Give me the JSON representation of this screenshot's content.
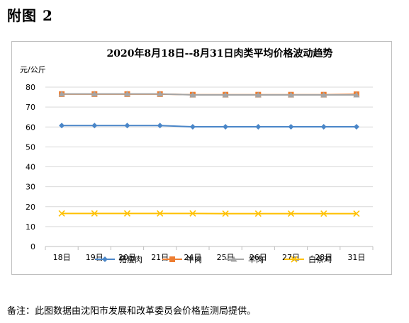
{
  "figure_label": "附图 2",
  "note": "备注：此图数据由沈阳市发展和改革委员会价格监测局提供。",
  "chart_data": {
    "type": "line",
    "title": "2020年8月18日--8月31日肉类平均价格波动趋势",
    "ylabel": "元/公斤",
    "xlabel": "",
    "ylim": [
      0,
      80
    ],
    "yticks": [
      0,
      10,
      20,
      30,
      40,
      50,
      60,
      70,
      80
    ],
    "grid": true,
    "legend": "bottom",
    "categories": [
      "18日",
      "19日",
      "20日",
      "21日",
      "24日",
      "25日",
      "26日",
      "27日",
      "28日",
      "31日"
    ],
    "series": [
      {
        "name": "猪瘦肉",
        "color": "#4a86c8",
        "marker": "diamond",
        "values": [
          60.7,
          60.7,
          60.7,
          60.7,
          60.1,
          60.1,
          60.1,
          60.1,
          60.1,
          60.1
        ]
      },
      {
        "name": "牛肉",
        "color": "#ed7d31",
        "marker": "square",
        "values": [
          76.5,
          76.5,
          76.5,
          76.5,
          76.2,
          76.2,
          76.2,
          76.2,
          76.2,
          76.4
        ]
      },
      {
        "name": "羊肉",
        "color": "#a5a5a5",
        "marker": "triangle",
        "values": [
          76.6,
          76.6,
          76.6,
          76.6,
          76.1,
          76.1,
          76.1,
          76.1,
          76.1,
          76.1
        ]
      },
      {
        "name": "白条鸡",
        "color": "#ffc000",
        "marker": "x",
        "values": [
          16.6,
          16.6,
          16.6,
          16.6,
          16.6,
          16.5,
          16.5,
          16.5,
          16.5,
          16.5
        ]
      }
    ]
  }
}
